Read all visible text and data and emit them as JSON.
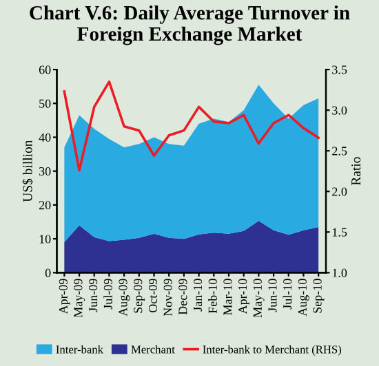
{
  "chart_data": {
    "type": "area",
    "title": "Chart V.6: Daily Average Turnover in\nForeign Exchange Market",
    "ylabel": "US$ billion",
    "y2label": "Ratio",
    "categories": [
      "Apr-09",
      "May-09",
      "Jun-09",
      "Jul-09",
      "Aug-09",
      "Sep-09",
      "Oct-09",
      "Nov-09",
      "Dec-09",
      "Jan-10",
      "Feb-10",
      "Mar-10",
      "Apr-10",
      "May-10",
      "Jun-10",
      "Jul-10",
      "Aug-10",
      "Sep-10"
    ],
    "stacked": true,
    "series": [
      {
        "name": "Merchant",
        "color": "#2e3192",
        "values": [
          9,
          14,
          10.5,
          9.3,
          9.7,
          10.3,
          11.5,
          10.3,
          10,
          11.3,
          11.8,
          11.5,
          12.3,
          15.3,
          12.5,
          11.2,
          12.5,
          13.5
        ]
      },
      {
        "name": "Inter-bank",
        "color": "#29abe2",
        "values": [
          28,
          32.5,
          32,
          30.2,
          27.3,
          27.7,
          28.5,
          27.7,
          27.5,
          32.7,
          33.7,
          33,
          35.7,
          40.2,
          37.5,
          34.3,
          37,
          38
        ]
      },
      {
        "name": "Inter-bank to Merchant (RHS)",
        "type": "line",
        "axis": "y2",
        "color": "#ed1c24",
        "values": [
          3.23,
          2.26,
          3.04,
          3.35,
          2.8,
          2.75,
          2.44,
          2.69,
          2.75,
          3.04,
          2.86,
          2.84,
          2.94,
          2.59,
          2.84,
          2.94,
          2.78,
          2.66
        ]
      }
    ],
    "ylim": [
      0,
      60
    ],
    "yticks": [
      0,
      10,
      20,
      30,
      40,
      50,
      60
    ],
    "y2lim": [
      1.0,
      3.5
    ],
    "y2ticks": [
      {
        "value": 1.0,
        "label": "1.0"
      },
      {
        "value": 1.5,
        "label": "1.5"
      },
      {
        "value": 2.0,
        "label": "2.0"
      },
      {
        "value": 2.5,
        "label": "2.5"
      },
      {
        "value": 3.0,
        "label": "3.0"
      },
      {
        "value": 3.5,
        "label": "3.5"
      }
    ],
    "legend": "bottom",
    "grid": false
  }
}
